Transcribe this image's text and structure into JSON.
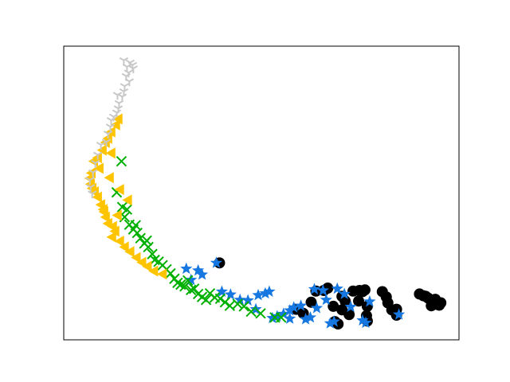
{
  "chart_data": {
    "type": "scatter",
    "title": "",
    "xlabel": "",
    "ylabel": "",
    "xticks": [],
    "yticks": [],
    "xlim": [
      0,
      100
    ],
    "ylim": [
      0,
      100
    ],
    "grid": false,
    "legend": "none",
    "series": [
      {
        "marker": "circle",
        "color": "#000000",
        "points": [
          [
            39.4,
            26.2
          ],
          [
            63.8,
            16.6
          ],
          [
            65.8,
            16.8
          ],
          [
            66.8,
            17.6
          ],
          [
            68.2,
            11.4
          ],
          [
            68.6,
            6.2
          ],
          [
            69.4,
            5.4
          ],
          [
            70.4,
            14.8
          ],
          [
            70.4,
            10.2
          ],
          [
            71.2,
            13.2
          ],
          [
            72.2,
            8.6
          ],
          [
            73.2,
            16.6
          ],
          [
            74.6,
            13.2
          ],
          [
            74.8,
            16.8
          ],
          [
            75.6,
            16.4
          ],
          [
            76.2,
            17.0
          ],
          [
            76.8,
            11.4
          ],
          [
            76.6,
            8.2
          ],
          [
            76.8,
            6.4
          ],
          [
            80.6,
            16.4
          ],
          [
            81.6,
            14.6
          ],
          [
            82.0,
            12.6
          ],
          [
            83.0,
            10.2
          ],
          [
            84.2,
            8.4
          ],
          [
            84.2,
            10.4
          ],
          [
            90.0,
            15.6
          ],
          [
            91.0,
            15.0
          ],
          [
            91.6,
            14.8
          ],
          [
            92.2,
            14.2
          ],
          [
            92.8,
            13.6
          ],
          [
            93.4,
            12.8
          ],
          [
            93.6,
            12.2
          ],
          [
            94.2,
            12.8
          ],
          [
            94.6,
            12.0
          ],
          [
            95.0,
            11.8
          ],
          [
            95.4,
            12.6
          ],
          [
            93.0,
            11.6
          ],
          [
            94.0,
            13.8
          ],
          [
            62.6,
            12.8
          ],
          [
            58.8,
            10.4
          ],
          [
            60.6,
            9.0
          ]
        ]
      },
      {
        "marker": "star",
        "color": "#1677e0",
        "points": [
          [
            31.0,
            24.2
          ],
          [
            32.2,
            20.4
          ],
          [
            34.0,
            23.6
          ],
          [
            35.0,
            22.2
          ],
          [
            38.6,
            26.2
          ],
          [
            40.0,
            16.4
          ],
          [
            42.2,
            15.4
          ],
          [
            44.6,
            13.6
          ],
          [
            46.6,
            13.4
          ],
          [
            49.2,
            15.2
          ],
          [
            51.0,
            15.8
          ],
          [
            52.0,
            16.4
          ],
          [
            48.6,
            10.4
          ],
          [
            52.8,
            7.4
          ],
          [
            54.0,
            8.0
          ],
          [
            55.6,
            8.8
          ],
          [
            57.2,
            10.0
          ],
          [
            58.2,
            11.0
          ],
          [
            60.0,
            11.6
          ],
          [
            61.2,
            7.0
          ],
          [
            62.4,
            7.6
          ],
          [
            64.0,
            10.8
          ],
          [
            65.6,
            16.8
          ],
          [
            66.4,
            13.6
          ],
          [
            67.4,
            5.6
          ],
          [
            68.4,
            6.2
          ],
          [
            69.2,
            17.4
          ],
          [
            71.0,
            15.6
          ],
          [
            72.6,
            11.2
          ],
          [
            75.6,
            6.6
          ],
          [
            76.4,
            5.8
          ],
          [
            77.4,
            13.0
          ],
          [
            84.8,
            8.6
          ],
          [
            57.2,
            7.2
          ],
          [
            63.4,
            17.2
          ]
        ]
      },
      {
        "marker": "x",
        "color": "#00b000",
        "points": [
          [
            14.6,
            60.8
          ],
          [
            13.4,
            50.2
          ],
          [
            14.8,
            45.2
          ],
          [
            15.4,
            41.8
          ],
          [
            16.6,
            39.2
          ],
          [
            17.6,
            37.6
          ],
          [
            18.6,
            36.4
          ],
          [
            19.4,
            34.6
          ],
          [
            20.4,
            32.8
          ],
          [
            21.4,
            31.6
          ],
          [
            22.4,
            29.2
          ],
          [
            23.0,
            27.2
          ],
          [
            24.0,
            26.6
          ],
          [
            25.0,
            25.4
          ],
          [
            26.0,
            24.0
          ],
          [
            27.0,
            22.6
          ],
          [
            28.0,
            20.8
          ],
          [
            28.8,
            19.4
          ],
          [
            29.6,
            18.8
          ],
          [
            30.6,
            18.2
          ],
          [
            31.4,
            20.2
          ],
          [
            32.2,
            17.0
          ],
          [
            33.0,
            17.4
          ],
          [
            34.0,
            15.6
          ],
          [
            35.0,
            14.6
          ],
          [
            36.0,
            13.6
          ],
          [
            37.0,
            15.8
          ],
          [
            38.2,
            14.4
          ],
          [
            39.6,
            14.0
          ],
          [
            40.8,
            12.8
          ],
          [
            42.0,
            11.6
          ],
          [
            44.0,
            12.2
          ],
          [
            45.6,
            11.4
          ],
          [
            47.4,
            9.6
          ],
          [
            49.8,
            9.0
          ],
          [
            53.4,
            7.6
          ],
          [
            55.0,
            7.6
          ],
          [
            16.0,
            44.4
          ],
          [
            18.2,
            39.0
          ],
          [
            21.0,
            33.8
          ]
        ]
      },
      {
        "marker": "triangle-left",
        "color": "#ffc400",
        "points": [
          [
            13.8,
            75.2
          ],
          [
            13.2,
            73.2
          ],
          [
            12.0,
            70.8
          ],
          [
            11.2,
            68.6
          ],
          [
            10.6,
            67.2
          ],
          [
            9.8,
            64.6
          ],
          [
            7.6,
            60.8
          ],
          [
            7.0,
            56.8
          ],
          [
            6.6,
            55.0
          ],
          [
            6.8,
            53.0
          ],
          [
            7.2,
            51.6
          ],
          [
            7.8,
            50.4
          ],
          [
            8.6,
            48.6
          ],
          [
            9.4,
            46.0
          ],
          [
            10.0,
            44.4
          ],
          [
            10.6,
            41.8
          ],
          [
            11.2,
            39.6
          ],
          [
            12.4,
            38.6
          ],
          [
            13.0,
            37.0
          ],
          [
            12.2,
            35.0
          ],
          [
            14.2,
            33.6
          ],
          [
            15.4,
            31.6
          ],
          [
            16.8,
            30.0
          ],
          [
            18.4,
            28.0
          ],
          [
            19.8,
            26.4
          ],
          [
            21.2,
            25.0
          ],
          [
            22.8,
            23.4
          ],
          [
            25.0,
            22.4
          ],
          [
            16.2,
            47.6
          ],
          [
            14.2,
            51.2
          ],
          [
            11.6,
            55.2
          ],
          [
            9.0,
            58.4
          ],
          [
            8.6,
            62.0
          ],
          [
            12.0,
            63.6
          ],
          [
            10.2,
            43.6
          ],
          [
            13.6,
            42.4
          ]
        ]
      },
      {
        "marker": "tri-down",
        "color": "#c8c8c8",
        "points": [
          [
            16.8,
            94.4
          ],
          [
            17.4,
            93.6
          ],
          [
            17.6,
            92.4
          ],
          [
            16.4,
            91.0
          ],
          [
            15.8,
            89.8
          ],
          [
            16.6,
            88.0
          ],
          [
            15.4,
            86.4
          ],
          [
            15.2,
            84.6
          ],
          [
            14.8,
            82.8
          ],
          [
            14.0,
            80.6
          ],
          [
            13.8,
            78.8
          ],
          [
            13.4,
            77.4
          ],
          [
            12.0,
            74.8
          ],
          [
            11.8,
            72.6
          ],
          [
            11.2,
            70.2
          ],
          [
            10.8,
            67.4
          ],
          [
            9.4,
            66.4
          ],
          [
            8.6,
            63.0
          ],
          [
            8.0,
            60.2
          ],
          [
            7.4,
            57.0
          ],
          [
            6.6,
            54.4
          ],
          [
            6.8,
            52.0
          ],
          [
            7.2,
            49.8
          ],
          [
            15.2,
            95.2
          ],
          [
            16.0,
            93.0
          ],
          [
            13.6,
            83.4
          ],
          [
            12.6,
            76.0
          ]
        ]
      }
    ]
  }
}
